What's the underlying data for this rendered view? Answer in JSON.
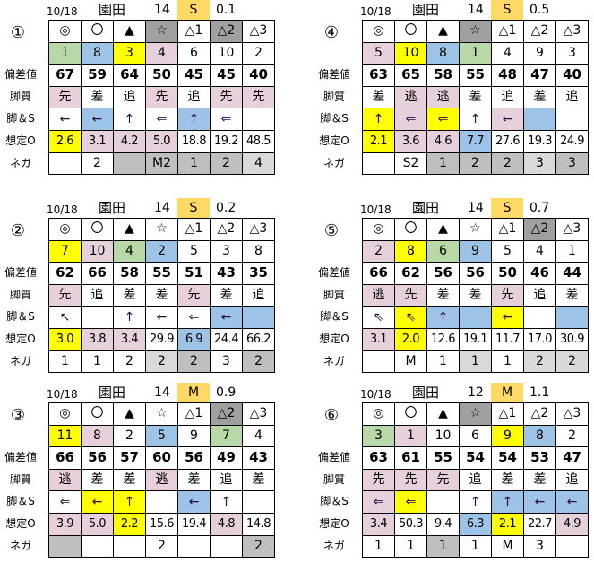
{
  "colors": {
    "": "#ffffff",
    "g": "#b8d8a8",
    "b": "#9dc3e6",
    "y": "#ffff00",
    "p": "#e6d0dc",
    "d": "#a0a0a0",
    "m": "#bfbfbf",
    "l": "#d9d9d9",
    "cond": "#ffd966"
  },
  "row_labels": [
    "",
    "",
    "偏差値",
    "脚質",
    "脚＆S",
    "想定O",
    "ネガ"
  ],
  "marks": [
    "◎",
    "〇",
    "▲",
    "☆",
    "△1",
    "△2",
    "△3"
  ],
  "panels": [
    {
      "id": "①",
      "date": "10/18",
      "track": "園田",
      "count": "14",
      "cond": "S",
      "val": "0.1",
      "mark_bg": [
        "",
        "",
        "",
        "d",
        "",
        "d",
        ""
      ],
      "rows": [
        [
          [
            "1",
            "g"
          ],
          [
            "8",
            "b"
          ],
          [
            "3",
            "y"
          ],
          [
            "4",
            "p"
          ],
          [
            "6",
            ""
          ],
          [
            "10",
            ""
          ],
          [
            "2",
            ""
          ]
        ],
        [
          [
            "67",
            ""
          ],
          [
            "59",
            ""
          ],
          [
            "64",
            ""
          ],
          [
            "50",
            ""
          ],
          [
            "45",
            ""
          ],
          [
            "45",
            ""
          ],
          [
            "40",
            ""
          ]
        ],
        [
          [
            "先",
            "p"
          ],
          [
            "差",
            ""
          ],
          [
            "追",
            ""
          ],
          [
            "先",
            "p"
          ],
          [
            "追",
            ""
          ],
          [
            "先",
            "p"
          ],
          [
            "先",
            "p"
          ]
        ],
        [
          [
            "←",
            ""
          ],
          [
            "←",
            "b"
          ],
          [
            "↑",
            ""
          ],
          [
            "⇐",
            ""
          ],
          [
            "↑",
            "b"
          ],
          [
            "⇐",
            ""
          ],
          [
            "",
            ""
          ]
        ],
        [
          [
            "2.6",
            "y"
          ],
          [
            "3.1",
            "p"
          ],
          [
            "4.2",
            "p"
          ],
          [
            "5.0",
            "p"
          ],
          [
            "18.8",
            ""
          ],
          [
            "19.2",
            ""
          ],
          [
            "48.5",
            ""
          ]
        ],
        [
          [
            "",
            ""
          ],
          [
            "2",
            ""
          ],
          [
            "",
            "m"
          ],
          [
            "M2",
            "m"
          ],
          [
            "1",
            "m"
          ],
          [
            "2",
            "m"
          ],
          [
            "4",
            "l"
          ]
        ]
      ]
    },
    {
      "id": "④",
      "date": "10/18",
      "track": "園田",
      "count": "14",
      "cond": "S",
      "val": "0.5",
      "mark_bg": [
        "",
        "",
        "",
        "d",
        "",
        "",
        ""
      ],
      "rows": [
        [
          [
            "5",
            "p"
          ],
          [
            "10",
            "y"
          ],
          [
            "8",
            "b"
          ],
          [
            "1",
            "g"
          ],
          [
            "4",
            ""
          ],
          [
            "9",
            ""
          ],
          [
            "3",
            ""
          ]
        ],
        [
          [
            "63",
            ""
          ],
          [
            "65",
            ""
          ],
          [
            "58",
            ""
          ],
          [
            "55",
            ""
          ],
          [
            "48",
            ""
          ],
          [
            "47",
            ""
          ],
          [
            "40",
            ""
          ]
        ],
        [
          [
            "差",
            ""
          ],
          [
            "逃",
            "p"
          ],
          [
            "逃",
            "p"
          ],
          [
            "差",
            ""
          ],
          [
            "追",
            ""
          ],
          [
            "差",
            ""
          ],
          [
            "追",
            ""
          ]
        ],
        [
          [
            "↑",
            "y"
          ],
          [
            "⇐",
            "p"
          ],
          [
            "⇐",
            "y"
          ],
          [
            "↑",
            ""
          ],
          [
            "←",
            "p"
          ],
          [
            "",
            "b"
          ],
          [
            "",
            ""
          ]
        ],
        [
          [
            "2.1",
            "y"
          ],
          [
            "3.6",
            "p"
          ],
          [
            "4.6",
            "p"
          ],
          [
            "7.7",
            "b"
          ],
          [
            "27.6",
            ""
          ],
          [
            "19.3",
            ""
          ],
          [
            "24.9",
            ""
          ]
        ],
        [
          [
            "",
            ""
          ],
          [
            "S2",
            ""
          ],
          [
            "1",
            "m"
          ],
          [
            "2",
            "m"
          ],
          [
            "2",
            "m"
          ],
          [
            "3",
            "l"
          ],
          [
            "3",
            "m"
          ]
        ]
      ]
    },
    {
      "id": "②",
      "date": "10/18",
      "track": "園田",
      "count": "14",
      "cond": "S",
      "val": "0.2",
      "mark_bg": [
        "",
        "",
        "",
        "",
        "",
        "",
        ""
      ],
      "rows": [
        [
          [
            "7",
            "y"
          ],
          [
            "10",
            "p"
          ],
          [
            "4",
            "g"
          ],
          [
            "2",
            "b"
          ],
          [
            "5",
            ""
          ],
          [
            "3",
            ""
          ],
          [
            "8",
            ""
          ]
        ],
        [
          [
            "62",
            ""
          ],
          [
            "66",
            ""
          ],
          [
            "58",
            ""
          ],
          [
            "55",
            ""
          ],
          [
            "51",
            ""
          ],
          [
            "43",
            ""
          ],
          [
            "35",
            ""
          ]
        ],
        [
          [
            "先",
            "p"
          ],
          [
            "追",
            ""
          ],
          [
            "差",
            ""
          ],
          [
            "差",
            ""
          ],
          [
            "先",
            "p"
          ],
          [
            "差",
            ""
          ],
          [
            "追",
            ""
          ]
        ],
        [
          [
            "↖",
            ""
          ],
          [
            "",
            ""
          ],
          [
            "↑",
            ""
          ],
          [
            "←",
            ""
          ],
          [
            "⇐",
            ""
          ],
          [
            "←",
            "b"
          ],
          [
            "",
            "b"
          ]
        ],
        [
          [
            "3.0",
            "y"
          ],
          [
            "3.8",
            "p"
          ],
          [
            "3.4",
            "p"
          ],
          [
            "29.9",
            ""
          ],
          [
            "6.9",
            "b"
          ],
          [
            "24.4",
            ""
          ],
          [
            "66.2",
            ""
          ]
        ],
        [
          [
            "1",
            ""
          ],
          [
            "1",
            ""
          ],
          [
            "2",
            ""
          ],
          [
            "2",
            "l"
          ],
          [
            "2",
            "m"
          ],
          [
            "3",
            ""
          ],
          [
            "2",
            "m"
          ]
        ]
      ]
    },
    {
      "id": "⑤",
      "date": "10/18",
      "track": "園田",
      "count": "14",
      "cond": "S",
      "val": "0.7",
      "mark_bg": [
        "",
        "",
        "",
        "",
        "",
        "d",
        ""
      ],
      "rows": [
        [
          [
            "2",
            "p"
          ],
          [
            "8",
            "y"
          ],
          [
            "6",
            "g"
          ],
          [
            "9",
            "b"
          ],
          [
            "5",
            ""
          ],
          [
            "4",
            ""
          ],
          [
            "1",
            ""
          ]
        ],
        [
          [
            "66",
            ""
          ],
          [
            "62",
            ""
          ],
          [
            "56",
            ""
          ],
          [
            "56",
            ""
          ],
          [
            "50",
            ""
          ],
          [
            "46",
            ""
          ],
          [
            "44",
            ""
          ]
        ],
        [
          [
            "逃",
            "p"
          ],
          [
            "先",
            "p"
          ],
          [
            "差",
            ""
          ],
          [
            "差",
            ""
          ],
          [
            "先",
            "p"
          ],
          [
            "追",
            ""
          ],
          [
            "差",
            ""
          ]
        ],
        [
          [
            "⇖",
            ""
          ],
          [
            "⇖",
            "y"
          ],
          [
            "↑",
            "b"
          ],
          [
            "",
            "b"
          ],
          [
            "←",
            "y"
          ],
          [
            "",
            ""
          ],
          [
            "",
            "b"
          ]
        ],
        [
          [
            "3.1",
            "p"
          ],
          [
            "2.0",
            "y"
          ],
          [
            "12.6",
            ""
          ],
          [
            "19.1",
            ""
          ],
          [
            "11.7",
            ""
          ],
          [
            "17.0",
            ""
          ],
          [
            "30.9",
            ""
          ]
        ],
        [
          [
            "",
            ""
          ],
          [
            "M",
            ""
          ],
          [
            "1",
            ""
          ],
          [
            "1",
            "l"
          ],
          [
            "1",
            ""
          ],
          [
            "2",
            "l"
          ],
          [
            "2",
            "l"
          ]
        ]
      ]
    },
    {
      "id": "③",
      "date": "10/18",
      "track": "園田",
      "count": "14",
      "cond": "M",
      "val": "0.9",
      "mark_bg": [
        "",
        "",
        "",
        "",
        "",
        "d",
        ""
      ],
      "rows": [
        [
          [
            "11",
            "y"
          ],
          [
            "8",
            "p"
          ],
          [
            "2",
            ""
          ],
          [
            "5",
            "b"
          ],
          [
            "9",
            ""
          ],
          [
            "7",
            "g"
          ],
          [
            "4",
            ""
          ]
        ],
        [
          [
            "66",
            ""
          ],
          [
            "56",
            ""
          ],
          [
            "57",
            ""
          ],
          [
            "60",
            ""
          ],
          [
            "56",
            ""
          ],
          [
            "49",
            ""
          ],
          [
            "43",
            ""
          ]
        ],
        [
          [
            "逃",
            "p"
          ],
          [
            "差",
            ""
          ],
          [
            "差",
            ""
          ],
          [
            "逃",
            "p"
          ],
          [
            "差",
            ""
          ],
          [
            "追",
            ""
          ],
          [
            "差",
            ""
          ]
        ],
        [
          [
            "⇐",
            ""
          ],
          [
            "←",
            "y"
          ],
          [
            "↑",
            "y"
          ],
          [
            "",
            ""
          ],
          [
            "←",
            "b"
          ],
          [
            "↑",
            ""
          ],
          [
            "",
            ""
          ]
        ],
        [
          [
            "3.9",
            "p"
          ],
          [
            "5.0",
            "p"
          ],
          [
            "2.2",
            "y"
          ],
          [
            "15.6",
            ""
          ],
          [
            "19.4",
            ""
          ],
          [
            "4.8",
            "p"
          ],
          [
            "14.8",
            ""
          ]
        ],
        [
          [
            "",
            "m"
          ],
          [
            "",
            ""
          ],
          [
            "",
            ""
          ],
          [
            "2",
            ""
          ],
          [
            "",
            ""
          ],
          [
            "",
            ""
          ],
          [
            "2",
            "m"
          ]
        ]
      ]
    },
    {
      "id": "⑥",
      "date": "10/18",
      "track": "園田",
      "count": "12",
      "cond": "M",
      "val": "1.1",
      "mark_bg": [
        "",
        "",
        "",
        "d",
        "",
        "",
        ""
      ],
      "rows": [
        [
          [
            "3",
            "g"
          ],
          [
            "1",
            "p"
          ],
          [
            "10",
            ""
          ],
          [
            "6",
            ""
          ],
          [
            "9",
            "y"
          ],
          [
            "8",
            "b"
          ],
          [
            "2",
            ""
          ]
        ],
        [
          [
            "63",
            ""
          ],
          [
            "61",
            ""
          ],
          [
            "55",
            ""
          ],
          [
            "54",
            ""
          ],
          [
            "54",
            ""
          ],
          [
            "53",
            ""
          ],
          [
            "47",
            ""
          ]
        ],
        [
          [
            "先",
            "p"
          ],
          [
            "先",
            "p"
          ],
          [
            "先",
            "p"
          ],
          [
            "追",
            ""
          ],
          [
            "差",
            ""
          ],
          [
            "差",
            ""
          ],
          [
            "追",
            ""
          ]
        ],
        [
          [
            "⇐",
            "p"
          ],
          [
            "⇐",
            "y"
          ],
          [
            "",
            ""
          ],
          [
            "↑",
            ""
          ],
          [
            "↑",
            "b"
          ],
          [
            "←",
            "b"
          ],
          [
            "←",
            "b"
          ]
        ],
        [
          [
            "3.4",
            "p"
          ],
          [
            "50.3",
            ""
          ],
          [
            "9.4",
            ""
          ],
          [
            "6.3",
            "b"
          ],
          [
            "2.1",
            "y"
          ],
          [
            "22.7",
            ""
          ],
          [
            "4.9",
            "p"
          ]
        ],
        [
          [
            "1",
            ""
          ],
          [
            "1",
            ""
          ],
          [
            "1",
            "m"
          ],
          [
            "1",
            ""
          ],
          [
            "M",
            ""
          ],
          [
            "3",
            ""
          ],
          [
            "",
            ""
          ]
        ]
      ]
    }
  ]
}
